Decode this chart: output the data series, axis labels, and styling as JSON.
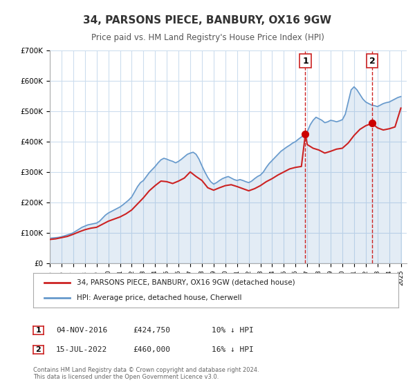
{
  "title": "34, PARSONS PIECE, BANBURY, OX16 9GW",
  "subtitle": "Price paid vs. HM Land Registry's House Price Index (HPI)",
  "legend_line1": "34, PARSONS PIECE, BANBURY, OX16 9GW (detached house)",
  "legend_line2": "HPI: Average price, detached house, Cherwell",
  "sale1_date": "04-NOV-2016",
  "sale1_price": 424750,
  "sale1_pct": "10%",
  "sale2_date": "15-JUL-2022",
  "sale2_price": 460000,
  "sale2_pct": "16%",
  "sale1_year": 2016.84,
  "sale2_year": 2022.54,
  "hpi_color": "#6699cc",
  "price_color": "#cc2222",
  "dot_color": "#cc0000",
  "grid_color": "#ccddee",
  "background_color": "#ffffff",
  "ylim": [
    0,
    700000
  ],
  "xlim_start": 1995.0,
  "xlim_end": 2025.5,
  "copyright_text": "Contains HM Land Registry data © Crown copyright and database right 2024.\nThis data is licensed under the Open Government Licence v3.0.",
  "hpi_years": [
    1995.0,
    1995.25,
    1995.5,
    1995.75,
    1996.0,
    1996.25,
    1996.5,
    1996.75,
    1997.0,
    1997.25,
    1997.5,
    1997.75,
    1998.0,
    1998.25,
    1998.5,
    1998.75,
    1999.0,
    1999.25,
    1999.5,
    1999.75,
    2000.0,
    2000.25,
    2000.5,
    2000.75,
    2001.0,
    2001.25,
    2001.5,
    2001.75,
    2002.0,
    2002.25,
    2002.5,
    2002.75,
    2003.0,
    2003.25,
    2003.5,
    2003.75,
    2004.0,
    2004.25,
    2004.5,
    2004.75,
    2005.0,
    2005.25,
    2005.5,
    2005.75,
    2006.0,
    2006.25,
    2006.5,
    2006.75,
    2007.0,
    2007.25,
    2007.5,
    2007.75,
    2008.0,
    2008.25,
    2008.5,
    2008.75,
    2009.0,
    2009.25,
    2009.5,
    2009.75,
    2010.0,
    2010.25,
    2010.5,
    2010.75,
    2011.0,
    2011.25,
    2011.5,
    2011.75,
    2012.0,
    2012.25,
    2012.5,
    2012.75,
    2013.0,
    2013.25,
    2013.5,
    2013.75,
    2014.0,
    2014.25,
    2014.5,
    2014.75,
    2015.0,
    2015.25,
    2015.5,
    2015.75,
    2016.0,
    2016.25,
    2016.5,
    2016.75,
    2017.0,
    2017.25,
    2017.5,
    2017.75,
    2018.0,
    2018.25,
    2018.5,
    2018.75,
    2019.0,
    2019.25,
    2019.5,
    2019.75,
    2020.0,
    2020.25,
    2020.5,
    2020.75,
    2021.0,
    2021.25,
    2021.5,
    2021.75,
    2022.0,
    2022.25,
    2022.5,
    2022.75,
    2023.0,
    2023.25,
    2023.5,
    2023.75,
    2024.0,
    2024.25,
    2024.5,
    2024.75,
    2025.0
  ],
  "hpi_values": [
    82000,
    83000,
    84000,
    85000,
    87000,
    90000,
    93000,
    96000,
    100000,
    106000,
    112000,
    118000,
    122000,
    126000,
    128000,
    130000,
    132000,
    138000,
    148000,
    158000,
    165000,
    170000,
    175000,
    180000,
    185000,
    192000,
    200000,
    208000,
    218000,
    235000,
    252000,
    265000,
    272000,
    285000,
    298000,
    308000,
    318000,
    330000,
    340000,
    345000,
    342000,
    338000,
    335000,
    330000,
    335000,
    342000,
    350000,
    358000,
    362000,
    365000,
    358000,
    342000,
    320000,
    300000,
    282000,
    268000,
    260000,
    265000,
    272000,
    278000,
    282000,
    285000,
    280000,
    275000,
    272000,
    275000,
    272000,
    268000,
    265000,
    270000,
    278000,
    285000,
    290000,
    300000,
    315000,
    328000,
    338000,
    348000,
    358000,
    368000,
    375000,
    382000,
    388000,
    395000,
    400000,
    408000,
    415000,
    422000,
    432000,
    455000,
    470000,
    480000,
    475000,
    470000,
    462000,
    465000,
    470000,
    468000,
    465000,
    468000,
    472000,
    490000,
    530000,
    570000,
    580000,
    570000,
    555000,
    540000,
    530000,
    525000,
    520000,
    518000,
    515000,
    520000,
    525000,
    528000,
    530000,
    535000,
    540000,
    545000,
    548000
  ],
  "price_years": [
    1995.0,
    1995.5,
    1996.0,
    1996.5,
    1997.0,
    1997.5,
    1998.0,
    1998.5,
    1999.0,
    1999.5,
    2000.0,
    2000.5,
    2001.0,
    2001.5,
    2002.0,
    2002.5,
    2003.0,
    2003.5,
    2004.0,
    2004.5,
    2005.0,
    2005.5,
    2006.0,
    2006.5,
    2007.0,
    2007.5,
    2008.0,
    2008.5,
    2009.0,
    2009.5,
    2010.0,
    2010.5,
    2011.0,
    2011.5,
    2012.0,
    2012.5,
    2013.0,
    2013.5,
    2014.0,
    2014.5,
    2015.0,
    2015.5,
    2016.0,
    2016.5,
    2016.84,
    2017.0,
    2017.5,
    2018.0,
    2018.5,
    2019.0,
    2019.5,
    2020.0,
    2020.5,
    2021.0,
    2021.5,
    2022.0,
    2022.54,
    2023.0,
    2023.5,
    2024.0,
    2024.5,
    2025.0
  ],
  "price_values": [
    78000,
    80000,
    84000,
    88000,
    95000,
    103000,
    110000,
    115000,
    118000,
    128000,
    138000,
    145000,
    152000,
    162000,
    175000,
    195000,
    215000,
    238000,
    255000,
    270000,
    268000,
    262000,
    270000,
    280000,
    300000,
    285000,
    272000,
    248000,
    240000,
    248000,
    255000,
    258000,
    252000,
    245000,
    238000,
    245000,
    255000,
    268000,
    278000,
    290000,
    300000,
    310000,
    315000,
    318000,
    424750,
    390000,
    378000,
    372000,
    362000,
    368000,
    375000,
    378000,
    395000,
    420000,
    440000,
    452000,
    460000,
    445000,
    438000,
    442000,
    448000,
    510000
  ]
}
